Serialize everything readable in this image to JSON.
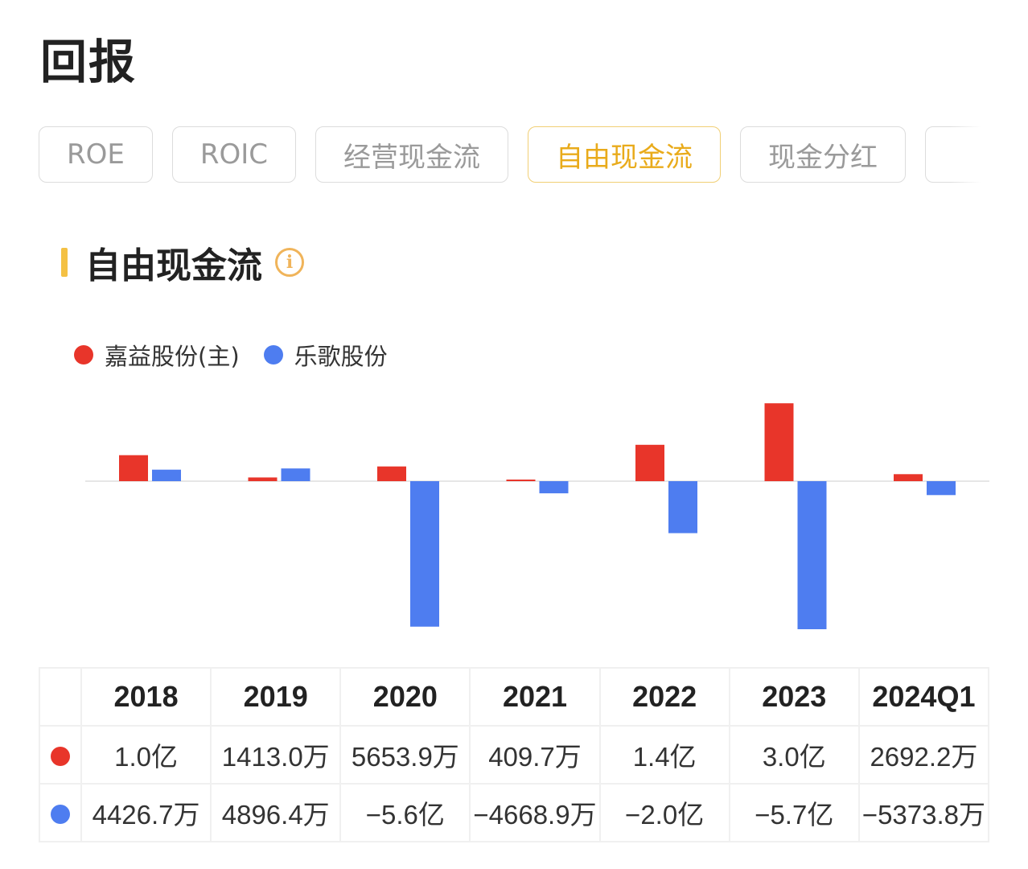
{
  "page_title": "回报",
  "tabs": [
    {
      "label": "ROE",
      "active": false
    },
    {
      "label": "ROIC",
      "active": false
    },
    {
      "label": "经营现金流",
      "active": false
    },
    {
      "label": "自由现金流",
      "active": true
    },
    {
      "label": "现金分红",
      "active": false
    },
    {
      "label": "",
      "active": false
    }
  ],
  "section": {
    "title": "自由现金流",
    "info_icon": "info-icon"
  },
  "colors": {
    "company_a": "#e8352a",
    "company_b": "#4e7df0",
    "accent": "#f4c144"
  },
  "chart_data": {
    "type": "bar",
    "categories": [
      "2018",
      "2019",
      "2020",
      "2021",
      "2022",
      "2023",
      "2024Q1"
    ],
    "series": [
      {
        "name": "嘉益股份(主)",
        "values": [
          10000,
          1413.0,
          5653.9,
          409.7,
          14000,
          30000,
          2692.2
        ]
      },
      {
        "name": "乐歌股份",
        "values": [
          4426.7,
          4896.4,
          -56000,
          -4668.9,
          -20000,
          -57000,
          -5373.8
        ]
      }
    ],
    "unit": "万",
    "ylim": [
      -57000,
      30000
    ],
    "grid": false,
    "legend_position": "top-left"
  },
  "table": {
    "headers": [
      "2018",
      "2019",
      "2020",
      "2021",
      "2022",
      "2023",
      "2024Q1"
    ],
    "rows": [
      {
        "values": [
          "1.0亿",
          "1413.0万",
          "5653.9万",
          "409.7万",
          "1.4亿",
          "3.0亿",
          "2692.2万"
        ]
      },
      {
        "values": [
          "4426.7万",
          "4896.4万",
          "−5.6亿",
          "−4668.9万",
          "−2.0亿",
          "−5.7亿",
          "−5373.8万"
        ]
      }
    ]
  }
}
